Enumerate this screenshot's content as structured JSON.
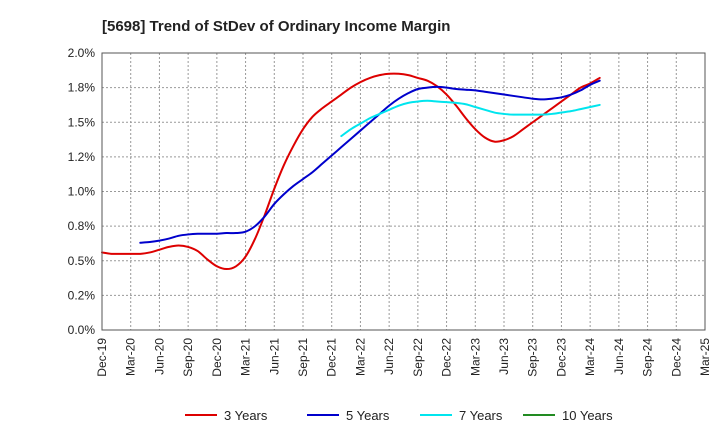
{
  "chart_data": {
    "type": "line",
    "title": "[5698]  Trend of StDev of Ordinary Income Margin",
    "xlabel": "",
    "ylabel": "",
    "x_ticks": [
      "Dec-19",
      "Mar-20",
      "Jun-20",
      "Sep-20",
      "Dec-20",
      "Mar-21",
      "Jun-21",
      "Sep-21",
      "Dec-21",
      "Mar-22",
      "Jun-22",
      "Sep-22",
      "Dec-22",
      "Mar-23",
      "Jun-23",
      "Sep-23",
      "Dec-23",
      "Mar-24",
      "Jun-24",
      "Sep-24",
      "Dec-24",
      "Mar-25"
    ],
    "y_ticks": [
      "0.0%",
      "0.2%",
      "0.5%",
      "0.8%",
      "1.0%",
      "1.2%",
      "1.5%",
      "1.8%",
      "2.0%"
    ],
    "ylim": [
      0,
      2.0
    ],
    "grid": true,
    "legend_position": "bottom",
    "series": [
      {
        "name": "3 Years",
        "color": "#dd0000",
        "points": [
          [
            0,
            0.56
          ],
          [
            1,
            0.55
          ],
          [
            2,
            0.55
          ],
          [
            3,
            0.55
          ],
          [
            4,
            0.55
          ],
          [
            5,
            0.56
          ],
          [
            6,
            0.58
          ],
          [
            7,
            0.6
          ],
          [
            8,
            0.61
          ],
          [
            9,
            0.6
          ],
          [
            10,
            0.57
          ],
          [
            11,
            0.51
          ],
          [
            12,
            0.46
          ],
          [
            13,
            0.44
          ],
          [
            14,
            0.46
          ],
          [
            15,
            0.53
          ],
          [
            16,
            0.66
          ],
          [
            17,
            0.83
          ],
          [
            18,
            1.02
          ],
          [
            19,
            1.19
          ],
          [
            20,
            1.33
          ],
          [
            21,
            1.45
          ],
          [
            22,
            1.54
          ],
          [
            23,
            1.6
          ],
          [
            24,
            1.65
          ],
          [
            25,
            1.7
          ],
          [
            26,
            1.75
          ],
          [
            27,
            1.79
          ],
          [
            28,
            1.82
          ],
          [
            29,
            1.84
          ],
          [
            30,
            1.85
          ],
          [
            31,
            1.85
          ],
          [
            32,
            1.84
          ],
          [
            33,
            1.82
          ],
          [
            34,
            1.8
          ],
          [
            35,
            1.76
          ],
          [
            36,
            1.7
          ],
          [
            37,
            1.62
          ],
          [
            38,
            1.53
          ],
          [
            39,
            1.45
          ],
          [
            40,
            1.39
          ],
          [
            41,
            1.36
          ],
          [
            42,
            1.37
          ],
          [
            43,
            1.4
          ],
          [
            44,
            1.45
          ],
          [
            45,
            1.5
          ],
          [
            46,
            1.55
          ],
          [
            47,
            1.6
          ],
          [
            48,
            1.65
          ],
          [
            49,
            1.7
          ],
          [
            50,
            1.75
          ],
          [
            51,
            1.78
          ],
          [
            52,
            1.82
          ]
        ]
      },
      {
        "name": "5 Years",
        "color": "#0000cc",
        "points": [
          [
            4,
            0.63
          ],
          [
            5,
            0.635
          ],
          [
            6,
            0.645
          ],
          [
            7,
            0.66
          ],
          [
            8,
            0.68
          ],
          [
            9,
            0.69
          ],
          [
            10,
            0.695
          ],
          [
            11,
            0.695
          ],
          [
            12,
            0.695
          ],
          [
            13,
            0.7
          ],
          [
            14,
            0.7
          ],
          [
            15,
            0.71
          ],
          [
            16,
            0.75
          ],
          [
            17,
            0.82
          ],
          [
            18,
            0.91
          ],
          [
            19,
            0.98
          ],
          [
            20,
            1.04
          ],
          [
            21,
            1.09
          ],
          [
            22,
            1.14
          ],
          [
            23,
            1.2
          ],
          [
            24,
            1.26
          ],
          [
            25,
            1.32
          ],
          [
            26,
            1.38
          ],
          [
            27,
            1.44
          ],
          [
            28,
            1.5
          ],
          [
            29,
            1.56
          ],
          [
            30,
            1.62
          ],
          [
            31,
            1.67
          ],
          [
            32,
            1.71
          ],
          [
            33,
            1.74
          ],
          [
            34,
            1.75
          ],
          [
            35,
            1.755
          ],
          [
            36,
            1.75
          ],
          [
            37,
            1.74
          ],
          [
            38,
            1.735
          ],
          [
            39,
            1.73
          ],
          [
            40,
            1.72
          ],
          [
            41,
            1.71
          ],
          [
            42,
            1.7
          ],
          [
            43,
            1.69
          ],
          [
            44,
            1.68
          ],
          [
            45,
            1.67
          ],
          [
            46,
            1.665
          ],
          [
            47,
            1.67
          ],
          [
            48,
            1.68
          ],
          [
            49,
            1.7
          ],
          [
            50,
            1.73
          ],
          [
            51,
            1.77
          ],
          [
            52,
            1.8
          ]
        ]
      },
      {
        "name": "7 Years",
        "color": "#00e5ee",
        "points": [
          [
            25,
            1.4
          ],
          [
            26,
            1.45
          ],
          [
            27,
            1.49
          ],
          [
            28,
            1.53
          ],
          [
            29,
            1.56
          ],
          [
            30,
            1.59
          ],
          [
            31,
            1.62
          ],
          [
            32,
            1.64
          ],
          [
            33,
            1.65
          ],
          [
            34,
            1.655
          ],
          [
            35,
            1.65
          ],
          [
            36,
            1.645
          ],
          [
            37,
            1.64
          ],
          [
            38,
            1.63
          ],
          [
            39,
            1.61
          ],
          [
            40,
            1.59
          ],
          [
            41,
            1.57
          ],
          [
            42,
            1.56
          ],
          [
            43,
            1.555
          ],
          [
            44,
            1.555
          ],
          [
            45,
            1.555
          ],
          [
            46,
            1.555
          ],
          [
            47,
            1.56
          ],
          [
            48,
            1.57
          ],
          [
            49,
            1.58
          ],
          [
            50,
            1.595
          ],
          [
            51,
            1.61
          ],
          [
            52,
            1.625
          ]
        ]
      },
      {
        "name": "10 Years",
        "color": "#228B22",
        "points": []
      }
    ]
  }
}
